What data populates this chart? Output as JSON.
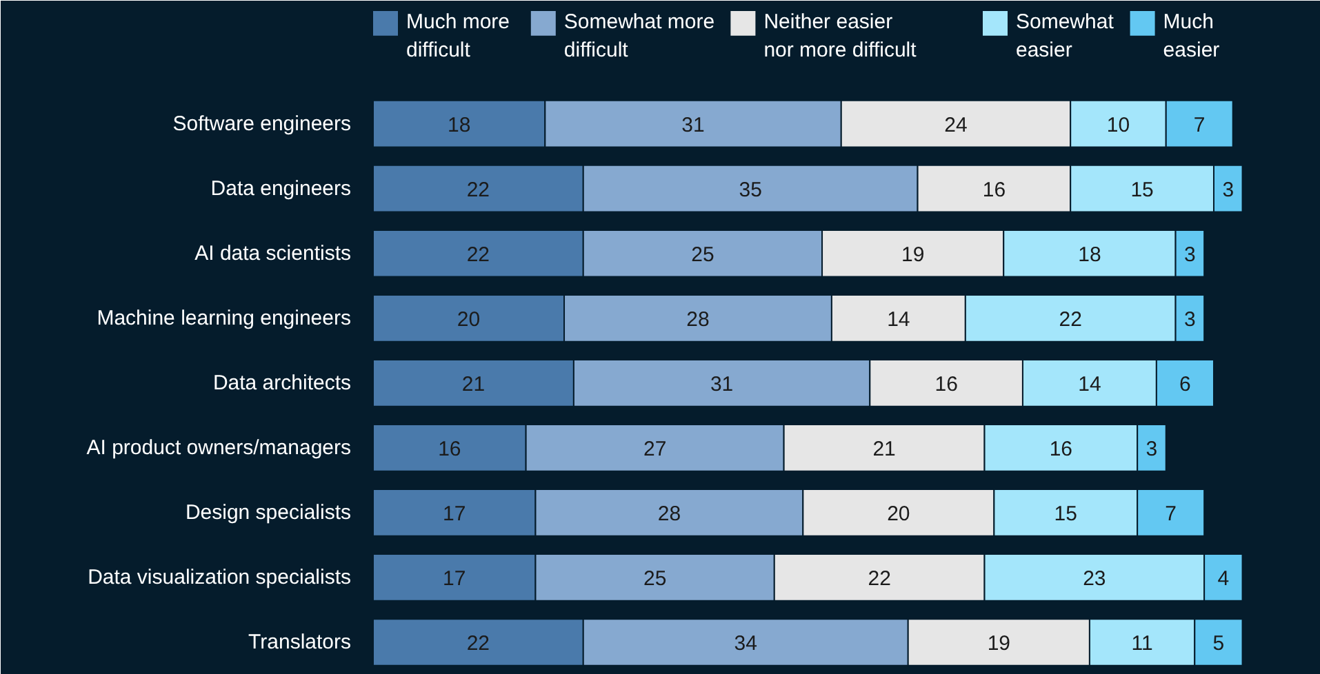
{
  "chart_data": {
    "type": "bar",
    "orientation": "horizontal",
    "stacked": true,
    "data_labels": true,
    "legend": "top",
    "grid": false,
    "categories": [
      "Software engineers",
      "Data engineers",
      "AI data scientists",
      "Machine learning engineers",
      "Data architects",
      "AI product owners/managers",
      "Design specialists",
      "Data visualization specialists",
      "Translators"
    ],
    "series": [
      {
        "name": "Much more difficult",
        "color": "#4a7aab",
        "values": [
          18,
          22,
          22,
          20,
          21,
          16,
          17,
          17,
          22
        ]
      },
      {
        "name": "Somewhat more difficult",
        "color": "#86a9d0",
        "values": [
          31,
          35,
          25,
          28,
          31,
          27,
          28,
          25,
          34
        ]
      },
      {
        "name": "Neither easier nor more difficult",
        "color": "#e6e6e6",
        "values": [
          24,
          16,
          19,
          14,
          16,
          21,
          20,
          22,
          19
        ]
      },
      {
        "name": "Somewhat easier",
        "color": "#a4e6fb",
        "values": [
          10,
          15,
          18,
          22,
          14,
          16,
          15,
          23,
          11
        ]
      },
      {
        "name": "Much easier",
        "color": "#63c8f2",
        "values": [
          7,
          3,
          3,
          3,
          6,
          3,
          7,
          4,
          5
        ]
      }
    ]
  }
}
